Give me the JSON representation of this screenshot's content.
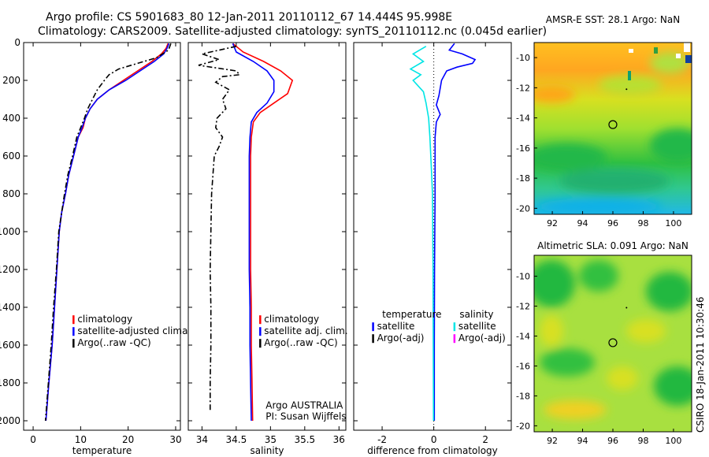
{
  "header": {
    "line1": "Argo profile: CS 5901683_80 12-Jan-2011 20110112_67 14.444S 95.998E",
    "line2": "Climatology: CARS2009. Satellite-adjusted climatology: synTS_20110112.nc (0.045d earlier)"
  },
  "side_stamp": "CSIRO 18-Jan-2011 10:30:46",
  "colors": {
    "climatology": "#ff0000",
    "satellite": "#0000ff",
    "argo": "#000000",
    "salinity_satellite": "#00e5e5",
    "salinity_argo": "#ff00ff"
  },
  "chart_data": [
    {
      "type": "line",
      "id": "temperature",
      "xlabel": "temperature",
      "xlim": [
        -2,
        31
      ],
      "ylim": [
        2050,
        0
      ],
      "xticks": [
        0,
        10,
        20,
        30
      ],
      "xtick_labels": [
        "0",
        "10",
        "20",
        "30"
      ],
      "yticks": [
        0,
        200,
        400,
        600,
        800,
        1000,
        1200,
        1400,
        1600,
        1800,
        2000
      ],
      "ytick_labels": [
        "0",
        "200",
        "400",
        "600",
        "800",
        "1000",
        "1200",
        "1400",
        "1600",
        "1800",
        "2000"
      ],
      "legend": {
        "placement": "bottom-right",
        "entries": [
          "climatology",
          "satellite-adjusted climatology",
          "Argo(..raw -QC)"
        ]
      },
      "series": [
        {
          "name": "climatology",
          "color": "#ff0000",
          "style": "solid",
          "points": [
            [
              28.4,
              5
            ],
            [
              28,
              30
            ],
            [
              27,
              60
            ],
            [
              25,
              100
            ],
            [
              22,
              150
            ],
            [
              19,
              200
            ],
            [
              16,
              250
            ],
            [
              13.5,
              300
            ],
            [
              12,
              350
            ],
            [
              11,
              400
            ],
            [
              10.5,
              450
            ],
            [
              9.5,
              500
            ],
            [
              8.5,
              600
            ],
            [
              7.5,
              700
            ],
            [
              6.8,
              800
            ],
            [
              6,
              900
            ],
            [
              5.5,
              1000
            ],
            [
              5,
              1200
            ],
            [
              4.5,
              1400
            ],
            [
              4,
              1600
            ],
            [
              3.3,
              1800
            ],
            [
              2.7,
              2000
            ]
          ]
        },
        {
          "name": "satellite-adjusted climatology",
          "color": "#0000ff",
          "style": "solid",
          "points": [
            [
              28.6,
              5
            ],
            [
              28.2,
              30
            ],
            [
              27.5,
              60
            ],
            [
              25.5,
              100
            ],
            [
              22.5,
              150
            ],
            [
              19.5,
              200
            ],
            [
              16,
              250
            ],
            [
              13.5,
              300
            ],
            [
              12,
              350
            ],
            [
              11,
              400
            ],
            [
              10.3,
              450
            ],
            [
              9.5,
              500
            ],
            [
              8.5,
              600
            ],
            [
              7.5,
              700
            ],
            [
              6.8,
              800
            ],
            [
              6,
              900
            ],
            [
              5.5,
              1000
            ],
            [
              5,
              1200
            ],
            [
              4.5,
              1400
            ],
            [
              4,
              1600
            ],
            [
              3.3,
              1800
            ],
            [
              2.7,
              2000
            ]
          ]
        },
        {
          "name": "Argo(..raw -QC)",
          "color": "#000000",
          "style": "dashdot",
          "points": [
            [
              29,
              5
            ],
            [
              28.5,
              40
            ],
            [
              26,
              80
            ],
            [
              22,
              110
            ],
            [
              18,
              140
            ],
            [
              16,
              170
            ],
            [
              15,
              200
            ],
            [
              13.5,
              250
            ],
            [
              12.5,
              300
            ],
            [
              11.5,
              350
            ],
            [
              10.8,
              400
            ],
            [
              10,
              450
            ],
            [
              9.2,
              500
            ],
            [
              8.3,
              600
            ],
            [
              7.3,
              700
            ],
            [
              6.6,
              800
            ],
            [
              6,
              900
            ],
            [
              5.4,
              1000
            ],
            [
              4.9,
              1200
            ],
            [
              4.3,
              1400
            ],
            [
              3.8,
              1600
            ],
            [
              3.2,
              1800
            ],
            [
              2.6,
              2000
            ]
          ]
        }
      ]
    },
    {
      "type": "line",
      "id": "salinity",
      "xlabel": "salinity",
      "xlim": [
        33.8,
        36.1
      ],
      "ylim": [
        2050,
        0
      ],
      "xticks": [
        34,
        34.5,
        35,
        35.5,
        36
      ],
      "xtick_labels": [
        "34",
        "34.5",
        "35",
        "35.5",
        "36"
      ],
      "legend": {
        "placement": "bottom-right",
        "entries": [
          "climatology",
          "satellite adj. clim.",
          "Argo(..raw -QC)"
        ]
      },
      "annotations": [
        "Argo AUSTRALIA",
        "PI: Susan Wijffels"
      ],
      "series": [
        {
          "name": "climatology",
          "color": "#ff0000",
          "style": "solid",
          "points": [
            [
              34.45,
              5
            ],
            [
              34.6,
              50
            ],
            [
              34.9,
              100
            ],
            [
              35.15,
              150
            ],
            [
              35.32,
              200
            ],
            [
              35.25,
              270
            ],
            [
              35.05,
              320
            ],
            [
              34.85,
              370
            ],
            [
              34.75,
              420
            ],
            [
              34.72,
              500
            ],
            [
              34.71,
              600
            ],
            [
              34.71,
              700
            ],
            [
              34.71,
              800
            ],
            [
              34.71,
              1000
            ],
            [
              34.71,
              1200
            ],
            [
              34.72,
              1400
            ],
            [
              34.72,
              1600
            ],
            [
              34.73,
              1800
            ],
            [
              34.74,
              2000
            ]
          ]
        },
        {
          "name": "satellite adj. clim.",
          "color": "#0000ff",
          "style": "solid",
          "points": [
            [
              34.45,
              5
            ],
            [
              34.5,
              50
            ],
            [
              34.75,
              100
            ],
            [
              34.95,
              150
            ],
            [
              35.05,
              200
            ],
            [
              35.05,
              260
            ],
            [
              34.95,
              320
            ],
            [
              34.8,
              370
            ],
            [
              34.72,
              420
            ],
            [
              34.7,
              500
            ],
            [
              34.69,
              600
            ],
            [
              34.69,
              700
            ],
            [
              34.69,
              800
            ],
            [
              34.69,
              1000
            ],
            [
              34.69,
              1200
            ],
            [
              34.7,
              1400
            ],
            [
              34.7,
              1600
            ],
            [
              34.71,
              1800
            ],
            [
              34.72,
              2000
            ]
          ]
        },
        {
          "name": "Argo(..raw -QC)",
          "color": "#000000",
          "style": "dashdot",
          "points": [
            [
              34.5,
              20
            ],
            [
              34.0,
              60
            ],
            [
              34.25,
              90
            ],
            [
              33.95,
              120
            ],
            [
              34.5,
              150
            ],
            [
              34.55,
              170
            ],
            [
              34.3,
              180
            ],
            [
              34.2,
              210
            ],
            [
              34.4,
              250
            ],
            [
              34.3,
              300
            ],
            [
              34.35,
              350
            ],
            [
              34.22,
              400
            ],
            [
              34.2,
              450
            ],
            [
              34.3,
              500
            ],
            [
              34.25,
              550
            ],
            [
              34.18,
              600
            ],
            [
              34.16,
              700
            ],
            [
              34.14,
              800
            ],
            [
              34.13,
              1000
            ],
            [
              34.12,
              1200
            ],
            [
              34.13,
              1400
            ],
            [
              34.13,
              1600
            ],
            [
              34.12,
              1800
            ],
            [
              34.12,
              1950
            ]
          ]
        }
      ]
    },
    {
      "type": "line",
      "id": "difference",
      "xlabel": "difference from climatology",
      "xlim": [
        -3.1,
        3.0
      ],
      "ylim": [
        2050,
        0
      ],
      "xticks": [
        -2,
        0,
        2
      ],
      "xtick_labels": [
        "-2",
        "0",
        "2"
      ],
      "legend": {
        "placement": "bottom",
        "col1_title": "temperature",
        "col2_title": "salinity",
        "col1_entries": [
          "satellite",
          "Argo(-adj)"
        ],
        "col2_entries": [
          "satellite",
          "Argo(-adj)"
        ]
      },
      "series": [
        {
          "name": "satellite",
          "group": "temperature",
          "color": "#0000ff",
          "style": "solid",
          "points": [
            [
              0.8,
              5
            ],
            [
              0.6,
              40
            ],
            [
              1.1,
              60
            ],
            [
              1.6,
              90
            ],
            [
              1.5,
              110
            ],
            [
              0.9,
              130
            ],
            [
              0.5,
              150
            ],
            [
              0.3,
              200
            ],
            [
              0.2,
              280
            ],
            [
              0.1,
              330
            ],
            [
              0.25,
              380
            ],
            [
              0.1,
              420
            ],
            [
              0.05,
              500
            ],
            [
              0.05,
              800
            ],
            [
              0.03,
              1200
            ],
            [
              0.02,
              1600
            ],
            [
              0.02,
              2000
            ]
          ]
        },
        {
          "name": "satellite",
          "group": "salinity",
          "color": "#00e5e5",
          "style": "solid",
          "points": [
            [
              -0.3,
              20
            ],
            [
              -0.8,
              60
            ],
            [
              -0.4,
              100
            ],
            [
              -0.9,
              140
            ],
            [
              -0.5,
              170
            ],
            [
              -0.8,
              200
            ],
            [
              -0.4,
              260
            ],
            [
              -0.3,
              320
            ],
            [
              -0.2,
              400
            ],
            [
              -0.15,
              500
            ],
            [
              -0.1,
              650
            ],
            [
              -0.05,
              800
            ],
            [
              -0.03,
              1200
            ],
            [
              -0.02,
              1600
            ],
            [
              -0.01,
              2000
            ]
          ]
        }
      ]
    },
    {
      "type": "heatmap",
      "id": "amsre",
      "title": "AMSR-E SST: 28.1 Argo: NaN",
      "xlim": [
        90.8,
        101.2
      ],
      "ylim": [
        -20.4,
        -9.0
      ],
      "xticks": [
        92,
        94,
        96,
        98,
        100
      ],
      "yticks": [
        -10,
        -12,
        -14,
        -16,
        -18,
        -20
      ],
      "marker": {
        "lon": 95.998,
        "lat": -14.444
      }
    },
    {
      "type": "heatmap",
      "id": "altimetry",
      "title": "Altimetric SLA: 0.091 Argo: NaN",
      "xlim": [
        90.8,
        101.2
      ],
      "ylim": [
        -20.4,
        -8.6
      ],
      "xticks": [
        92,
        94,
        96,
        98,
        100
      ],
      "yticks": [
        -10,
        -12,
        -14,
        -16,
        -18,
        -20
      ],
      "marker": {
        "lon": 95.998,
        "lat": -14.444
      }
    }
  ]
}
